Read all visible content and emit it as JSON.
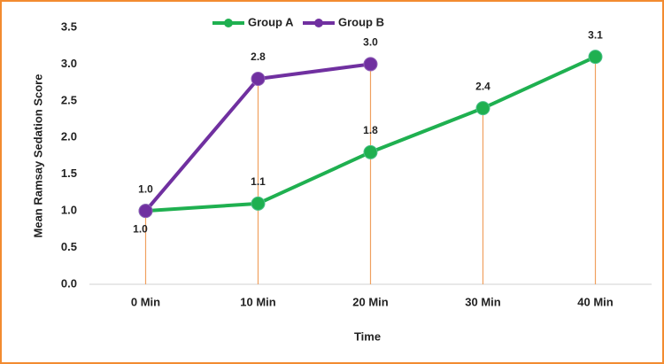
{
  "chart_data": {
    "type": "line",
    "categories": [
      "0 Min",
      "10 Min",
      "20 Min",
      "30 Min",
      "40 Min"
    ],
    "series": [
      {
        "name": "Group A",
        "color": "#1fb050",
        "values": [
          1.0,
          1.1,
          1.8,
          2.4,
          3.1
        ],
        "value_labels": [
          "1.0",
          "1.1",
          "1.8",
          "2.4",
          "3.1"
        ]
      },
      {
        "name": "Group B",
        "color": "#7030a0",
        "values": [
          1.0,
          2.8,
          3.0,
          null,
          null
        ],
        "value_labels": [
          "1.0",
          "2.8",
          "3.0",
          null,
          null
        ]
      }
    ],
    "x_label": "Time",
    "y_label": "Mean Ramsay Sedation Score",
    "ylim": [
      0,
      3.5
    ],
    "yticks": [
      {
        "value": 0,
        "label": "0.0"
      },
      {
        "value": 0.5,
        "label": "0.5"
      },
      {
        "value": 1,
        "label": "1.0"
      },
      {
        "value": 1.5,
        "label": "1.5"
      },
      {
        "value": 2,
        "label": "2.0"
      },
      {
        "value": 2.5,
        "label": "2.5"
      },
      {
        "value": 3,
        "label": "3.0"
      },
      {
        "value": 3.5,
        "label": "3.5"
      }
    ],
    "drop_lines_color": "#f0a060",
    "legend": "top"
  }
}
